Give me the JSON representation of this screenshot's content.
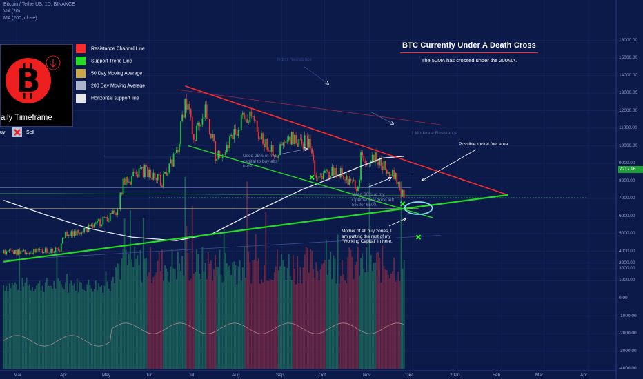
{
  "header": {
    "symbol_line": "Bitcoin / TetherUS, 1D, BINANCE",
    "vol_line": "Vol (20)",
    "ma_line": "MA (200, close)"
  },
  "legend": {
    "timeframe_label": "aily Timeframe",
    "buy_label": "uy",
    "sell_label": "Sell",
    "items": [
      {
        "label": "Resistance Channel Line",
        "color": "#ff2a2a"
      },
      {
        "label": "Support Trend Line",
        "color": "#22dd22"
      },
      {
        "label": "50 Day Moving Average",
        "color": "#c9a74a"
      },
      {
        "label": "200 Day Moving Average",
        "color": "#a9b3cc"
      },
      {
        "label": "Horizontal support line",
        "color": "#e6e6ea"
      }
    ]
  },
  "title": {
    "main": "BTC Currently Under A Death Cross",
    "sub": "The 50MA has crossed under the 200MA."
  },
  "annotations": {
    "rocket": "Possible rocket fuel area",
    "used25": [
      "Used 25% of my",
      "capital to buy alts",
      "here."
    ],
    "used30": [
      "Used 30% at my",
      "Optimal buy zone left",
      "5% for 6500."
    ],
    "mother": [
      "Mother of all buy zones, I",
      "am putting the rest of my",
      "\"Working Capital\" in here."
    ],
    "faint1": "Hdntr Resistance",
    "faint2": "1 Moderate Resistance"
  },
  "price_label": "7217.96",
  "colors": {
    "background": "#0c1a4a",
    "up_candle": "#26c649",
    "down_candle": "#e83a3a",
    "resistance": "#ff2a2a",
    "support": "#22dd22",
    "ma200": "#e8ecf5",
    "horizontal": "#ffffff",
    "ellipse": "#8ad8f0"
  },
  "chart_data": {
    "type": "candlestick",
    "x_tick_labels": [
      "Mar",
      "Apr",
      "May",
      "Jun",
      "Jul",
      "Aug",
      "Sep",
      "Oct",
      "Nov",
      "Dec",
      "2020",
      "Feb",
      "Mar",
      "Apr"
    ],
    "y_tick_labels": [
      "16000.00",
      "15000.00",
      "14000.00",
      "13000.00",
      "12000.00",
      "11000.00",
      "10000.00",
      "9000.00",
      "8000.00",
      "7000.00",
      "6000.00",
      "5000.00",
      "4000.00",
      "3000.00",
      "2000.00",
      "1000.00",
      "0.00",
      "-1000.00",
      "-2000.00",
      "-3000.00",
      "-4000.00"
    ],
    "price_ylim": [
      3000,
      16500
    ],
    "current_price": 7217.96,
    "price_path": [
      [
        "2019-02-20",
        3900
      ],
      [
        "2019-03-15",
        4000
      ],
      [
        "2019-03-31",
        4100
      ],
      [
        "2019-04-02",
        4900
      ],
      [
        "2019-04-20",
        5300
      ],
      [
        "2019-05-10",
        6200
      ],
      [
        "2019-05-14",
        7900
      ],
      [
        "2019-05-30",
        8600
      ],
      [
        "2019-06-10",
        8000
      ],
      [
        "2019-06-20",
        9500
      ],
      [
        "2019-06-26",
        12500
      ],
      [
        "2019-06-28",
        12000
      ],
      [
        "2019-07-02",
        10500
      ],
      [
        "2019-07-10",
        12100
      ],
      [
        "2019-07-17",
        9500
      ],
      [
        "2019-07-25",
        9900
      ],
      [
        "2019-08-06",
        11800
      ],
      [
        "2019-08-12",
        11400
      ],
      [
        "2019-08-20",
        10200
      ],
      [
        "2019-08-29",
        9600
      ],
      [
        "2019-09-08",
        10400
      ],
      [
        "2019-09-20",
        10100
      ],
      [
        "2019-09-24",
        8500
      ],
      [
        "2019-10-01",
        8300
      ],
      [
        "2019-10-10",
        8600
      ],
      [
        "2019-10-24",
        7500
      ],
      [
        "2019-10-26",
        9300
      ],
      [
        "2019-11-05",
        9300
      ],
      [
        "2019-11-12",
        8800
      ],
      [
        "2019-11-20",
        8100
      ],
      [
        "2019-11-22",
        7200
      ],
      [
        "2019-11-25",
        7217.96
      ]
    ],
    "ma200_path": [
      [
        "2019-02-20",
        6900
      ],
      [
        "2019-03-20",
        6100
      ],
      [
        "2019-04-20",
        5300
      ],
      [
        "2019-05-20",
        4800
      ],
      [
        "2019-06-20",
        4600
      ],
      [
        "2019-07-15",
        5000
      ],
      [
        "2019-08-15",
        6300
      ],
      [
        "2019-09-15",
        7500
      ],
      [
        "2019-10-10",
        8300
      ],
      [
        "2019-10-25",
        8800
      ],
      [
        "2019-11-10",
        9300
      ],
      [
        "2019-11-25",
        9400
      ]
    ],
    "resistance_line": [
      [
        "2019-06-26",
        13400
      ],
      [
        "2020-02-05",
        7200
      ]
    ],
    "support_channel": [
      [
        "2019-06-28",
        10000
      ],
      [
        "2019-12-15",
        5900
      ]
    ],
    "support_trend": [
      [
        "2019-02-20",
        3400
      ],
      [
        "2020-02-05",
        7200
      ]
    ],
    "horizontal_support": 6400,
    "buy_zones": [
      [
        "2019-09-22",
        8200
      ],
      [
        "2019-11-24",
        6700
      ],
      [
        "2019-12-05",
        4800
      ]
    ],
    "volume_ylim": [
      -4000,
      4000
    ]
  }
}
